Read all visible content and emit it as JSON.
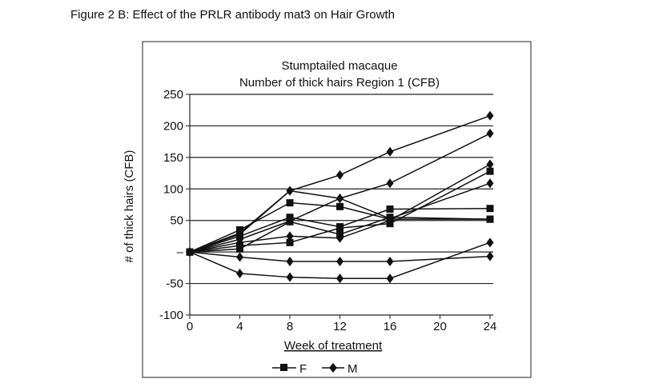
{
  "figure_title": "Figure 2 B: Effect of the PRLR antibody mat3 on Hair Growth",
  "chart_data": {
    "type": "line",
    "title": [
      "Stumptailed macaque",
      "Number of thick hairs Region 1 (CFB)"
    ],
    "xlabel": "Week of treatment",
    "ylabel": "# of thick hairs (CFB)",
    "x": [
      0,
      4,
      8,
      12,
      16,
      24
    ],
    "xticks": [
      0,
      4,
      8,
      12,
      16,
      20,
      24
    ],
    "yticks": [
      "-100",
      "-50",
      "–",
      "50",
      "100",
      "150",
      "200",
      "250"
    ],
    "ylim": [
      -100,
      250
    ],
    "xlim": [
      0,
      24
    ],
    "grid": "horizontal",
    "legend": {
      "placement": "bottom",
      "entries": [
        "F",
        "M"
      ]
    },
    "series": [
      {
        "name": "F",
        "values": [
          0,
          35,
          78,
          72,
          52,
          52
        ]
      },
      {
        "name": "F",
        "values": [
          0,
          25,
          55,
          40,
          68,
          69
        ]
      },
      {
        "name": "F",
        "values": [
          0,
          10,
          15,
          38,
          45,
          128
        ]
      },
      {
        "name": "F",
        "values": [
          0,
          5,
          48,
          28,
          55,
          52
        ]
      },
      {
        "name": "M",
        "values": [
          0,
          30,
          97,
          122,
          159,
          216
        ]
      },
      {
        "name": "M",
        "values": [
          0,
          20,
          49,
          85,
          109,
          188
        ]
      },
      {
        "name": "M",
        "values": [
          0,
          28,
          97,
          85,
          53,
          109
        ]
      },
      {
        "name": "M",
        "values": [
          0,
          15,
          25,
          22,
          50,
          139
        ]
      },
      {
        "name": "M",
        "values": [
          0,
          -8,
          -15,
          -15,
          -15,
          -7
        ]
      },
      {
        "name": "M",
        "values": [
          0,
          -34,
          -40,
          -42,
          -42,
          15
        ]
      }
    ]
  }
}
